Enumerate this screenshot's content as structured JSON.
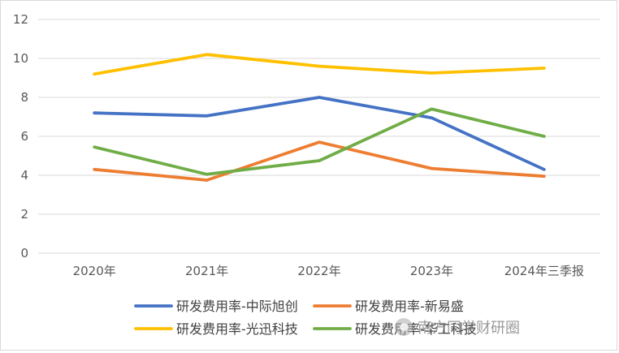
{
  "chart_data": {
    "type": "line",
    "title": "",
    "xlabel": "",
    "ylabel": "",
    "categories": [
      "2020年",
      "2021年",
      "2022年",
      "2023年",
      "2024年三季报"
    ],
    "ylim": [
      0,
      12
    ],
    "yticks": [
      0,
      2,
      4,
      6,
      8,
      10,
      12
    ],
    "grid": true,
    "legend_position": "bottom",
    "series": [
      {
        "name": "研发费用率-中际旭创",
        "color": "#4472C4",
        "values": [
          7.2,
          7.05,
          8.0,
          6.95,
          4.3
        ]
      },
      {
        "name": "研发费用率-新易盛",
        "color": "#ED7D31",
        "values": [
          4.3,
          3.75,
          5.7,
          4.35,
          3.95
        ]
      },
      {
        "name": "研发费用率-光迅科技",
        "color": "#FFC000",
        "values": [
          9.2,
          10.2,
          9.6,
          9.25,
          9.5
        ]
      },
      {
        "name": "研发费用率-华工科技",
        "color": "#70AD47",
        "values": [
          5.45,
          4.05,
          4.75,
          7.4,
          6.0
        ]
      }
    ]
  },
  "watermark": {
    "text": "南方同学财研圈",
    "icon": "wechat-account-icon"
  }
}
